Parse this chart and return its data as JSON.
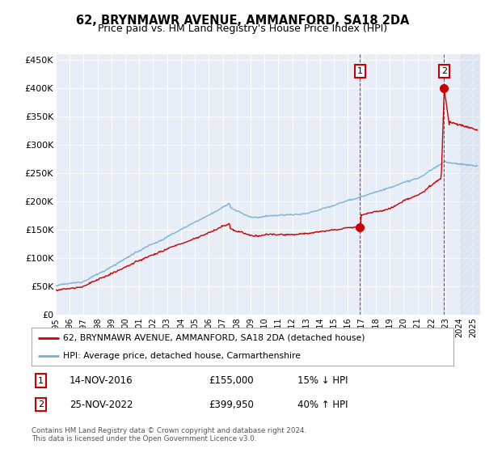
{
  "title": "62, BRYNMAWR AVENUE, AMMANFORD, SA18 2DA",
  "subtitle": "Price paid vs. HM Land Registry's House Price Index (HPI)",
  "ylim": [
    0,
    460000
  ],
  "yticks": [
    0,
    50000,
    100000,
    150000,
    200000,
    250000,
    300000,
    350000,
    400000,
    450000
  ],
  "ytick_labels": [
    "£0",
    "£50K",
    "£100K",
    "£150K",
    "£200K",
    "£250K",
    "£300K",
    "£350K",
    "£400K",
    "£450K"
  ],
  "xlim_start": 1995.0,
  "xlim_end": 2025.5,
  "sale1_x": 2016.87,
  "sale1_y": 155000,
  "sale1_label": "14-NOV-2016",
  "sale1_price": "£155,000",
  "sale1_hpi": "15% ↓ HPI",
  "sale2_x": 2022.9,
  "sale2_y": 399950,
  "sale2_label": "25-NOV-2022",
  "sale2_price": "£399,950",
  "sale2_hpi": "40% ↑ HPI",
  "legend1": "62, BRYNMAWR AVENUE, AMMANFORD, SA18 2DA (detached house)",
  "legend2": "HPI: Average price, detached house, Carmarthenshire",
  "footnote": "Contains HM Land Registry data © Crown copyright and database right 2024.\nThis data is licensed under the Open Government Licence v3.0.",
  "hpi_color": "#7aadd4",
  "price_color": "#cc0000",
  "bg_color": "#e8eef8",
  "hatch_start": 2024.0,
  "title_fontsize": 10.5,
  "subtitle_fontsize": 9
}
